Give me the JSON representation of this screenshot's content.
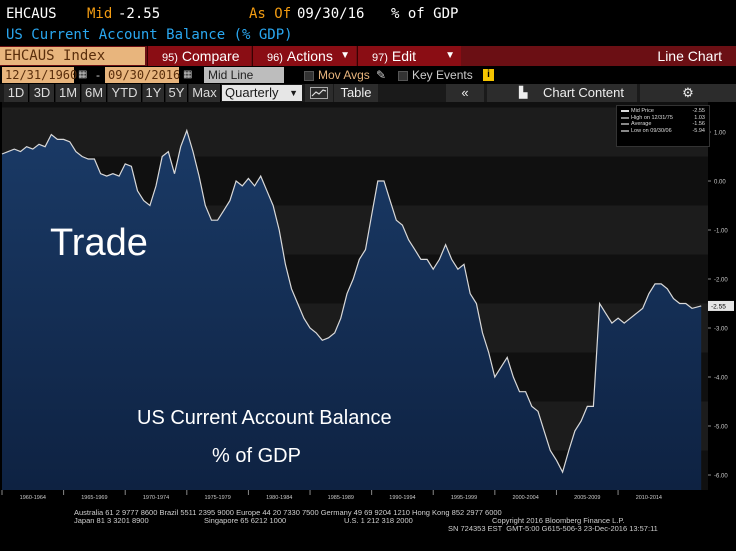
{
  "header": {
    "ticker": "EHCAUS",
    "mid_label": "Mid",
    "mid_value": "-2.55",
    "as_of_label": "As Of",
    "as_of_date": "09/30/16",
    "unit": "% of GDP",
    "subtitle": "US Current Account Balance (% GDP)"
  },
  "toolbar": {
    "security": "EHCAUS Index",
    "compare_num": "95)",
    "compare": "Compare",
    "actions_num": "96)",
    "actions": "Actions",
    "edit_num": "97)",
    "edit": "Edit",
    "chart_type": "Line Chart"
  },
  "datebar": {
    "start": "12/31/1960",
    "dash": "-",
    "end": "09/30/2016",
    "mode": "Mid Line",
    "mov_avgs": "Mov Avgs",
    "key_events": "Key Events"
  },
  "periods": [
    "1D",
    "3D",
    "1M",
    "6M",
    "YTD",
    "1Y",
    "5Y",
    "Max"
  ],
  "frequency": "Quarterly",
  "table_label": "Table",
  "chart_content_label": "Chart Content",
  "annotations": {
    "trade": "Trade",
    "line1": "US Current Account Balance",
    "line2": "% of GDP"
  },
  "legend": {
    "mid_label": "Mid Price",
    "mid_value": "-2.55",
    "high_label": "High on 12/31/75",
    "high_value": "1.03",
    "avg_label": "Average",
    "avg_value": "-1.56",
    "low_label": "Low on 09/30/06",
    "low_value": "-5.94"
  },
  "last_value_tag": "-2.55",
  "footer": {
    "line1": "Australia 61 2 9777 8600 Brazil 5511 2395 9000 Europe 44 20 7330 7500 Germany 49 69 9204 1210 Hong Kong 852 2977 6000",
    "line2a": "Japan 81 3 3201 8900",
    "line2b": "Singapore 65 6212 1000",
    "line2c": "U.S. 1 212 318 2000",
    "line2d": "Copyright 2016 Bloomberg Finance L.P.",
    "line3": "SN 724353 EST  GMT-5:00 G615-506-3 23-Dec-2016 13:57:11"
  },
  "colors": {
    "series": "#d9d9d9",
    "area": "#12284a",
    "header_orange": "#f39c12",
    "header_blue": "#2aa7f0"
  },
  "chart_data": {
    "type": "area",
    "title": "US Current Account Balance (% GDP)",
    "ylabel": "",
    "ylim": [
      -6.5,
      1.5
    ],
    "xlim": [
      1960,
      2017.3
    ],
    "y_ticks": [
      "1.00",
      "0.00",
      "-1.00",
      "-2.00",
      "-3.00",
      "-4.00",
      "-5.00",
      "-6.00"
    ],
    "y_tick_values": [
      1,
      0,
      -1,
      -2,
      -3,
      -4,
      -5,
      -6
    ],
    "x_tick_labels": [
      "1960-1964",
      "1965-1969",
      "1970-1974",
      "1975-1979",
      "1980-1984",
      "1985-1989",
      "1990-1994",
      "1995-1999",
      "2000-2004",
      "2005-2009",
      "2010-2014"
    ],
    "x_tick_years": [
      1960,
      1965,
      1970,
      1975,
      1980,
      1985,
      1990,
      1995,
      2000,
      2005,
      2010
    ],
    "series": [
      {
        "name": "EHCAUS Index",
        "x": [
          1960.0,
          1960.5,
          1961.0,
          1961.5,
          1962.0,
          1962.5,
          1963.0,
          1963.5,
          1964.0,
          1964.5,
          1965.0,
          1965.5,
          1966.0,
          1966.5,
          1967.0,
          1967.5,
          1968.0,
          1968.5,
          1969.0,
          1969.5,
          1970.0,
          1970.5,
          1971.0,
          1971.5,
          1972.0,
          1972.5,
          1973.0,
          1973.5,
          1974.0,
          1974.5,
          1975.0,
          1975.5,
          1976.0,
          1976.5,
          1977.0,
          1977.5,
          1978.0,
          1978.5,
          1979.0,
          1979.5,
          1980.0,
          1980.5,
          1981.0,
          1981.5,
          1982.0,
          1982.5,
          1983.0,
          1983.5,
          1984.0,
          1984.5,
          1985.0,
          1985.5,
          1986.0,
          1986.5,
          1987.0,
          1987.5,
          1988.0,
          1988.5,
          1989.0,
          1989.5,
          1990.0,
          1990.5,
          1991.0,
          1991.5,
          1992.0,
          1992.5,
          1993.0,
          1993.5,
          1994.0,
          1994.5,
          1995.0,
          1995.5,
          1996.0,
          1996.5,
          1997.0,
          1997.5,
          1998.0,
          1998.5,
          1999.0,
          1999.5,
          2000.0,
          2000.5,
          2001.0,
          2001.5,
          2002.0,
          2002.5,
          2003.0,
          2003.5,
          2004.0,
          2004.5,
          2005.0,
          2005.5,
          2006.0,
          2006.5,
          2007.0,
          2007.5,
          2008.0,
          2008.5,
          2009.0,
          2009.5,
          2010.0,
          2010.5,
          2011.0,
          2011.5,
          2012.0,
          2012.5,
          2013.0,
          2013.5,
          2014.0,
          2014.5,
          2015.0,
          2015.5,
          2016.0,
          2016.75
        ],
        "values": [
          0.55,
          0.6,
          0.65,
          0.6,
          0.7,
          0.65,
          0.75,
          0.7,
          0.95,
          0.85,
          0.85,
          0.8,
          0.6,
          0.5,
          0.45,
          0.45,
          0.15,
          0.1,
          0.15,
          0.1,
          0.35,
          0.3,
          -0.2,
          -0.4,
          -0.5,
          -0.1,
          0.5,
          0.6,
          0.15,
          0.7,
          1.03,
          0.6,
          0.1,
          -0.5,
          -0.8,
          -0.8,
          -0.6,
          -0.4,
          0.0,
          -0.1,
          0.05,
          -0.1,
          0.1,
          -0.2,
          -0.5,
          -1.0,
          -1.7,
          -2.2,
          -2.5,
          -2.8,
          -3.0,
          -3.1,
          -3.25,
          -3.2,
          -3.1,
          -2.8,
          -2.3,
          -2.0,
          -1.6,
          -1.4,
          -0.7,
          0.0,
          0.0,
          -0.4,
          -0.8,
          -0.9,
          -1.2,
          -1.4,
          -1.6,
          -1.6,
          -1.8,
          -1.6,
          -1.3,
          -1.6,
          -1.8,
          -1.7,
          -2.3,
          -2.5,
          -3.1,
          -3.5,
          -4.0,
          -3.8,
          -3.6,
          -4.0,
          -4.3,
          -4.3,
          -4.6,
          -4.7,
          -5.1,
          -5.5,
          -5.7,
          -5.94,
          -5.5,
          -5.1,
          -4.9,
          -4.6,
          -4.6,
          -2.5,
          -2.7,
          -2.9,
          -2.8,
          -2.9,
          -2.8,
          -2.7,
          -2.6,
          -2.3,
          -2.1,
          -2.1,
          -2.2,
          -2.4,
          -2.5,
          -2.5,
          -2.6,
          -2.55
        ]
      }
    ]
  }
}
